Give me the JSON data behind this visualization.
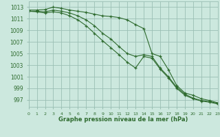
{
  "x": [
    0,
    1,
    2,
    3,
    4,
    5,
    6,
    7,
    8,
    9,
    10,
    11,
    12,
    13,
    14,
    15,
    16,
    17,
    18,
    19,
    20,
    21,
    22,
    23
  ],
  "line1": [
    1012.5,
    1012.5,
    1012.6,
    1013.0,
    1012.8,
    1012.5,
    1012.3,
    1012.1,
    1011.8,
    1011.5,
    1011.4,
    1011.2,
    1010.8,
    1010.0,
    1009.3,
    1005.0,
    1004.5,
    1002.2,
    999.5,
    998.2,
    997.8,
    997.2,
    996.9,
    996.5
  ],
  "line2": [
    1012.3,
    1012.3,
    1012.2,
    1012.5,
    1012.3,
    1012.0,
    1011.5,
    1010.8,
    1009.8,
    1008.5,
    1007.5,
    1006.2,
    1005.0,
    1004.5,
    1004.8,
    1004.5,
    1002.5,
    1001.0,
    999.2,
    998.0,
    997.3,
    996.9,
    996.7,
    996.4
  ],
  "line3": [
    1012.3,
    1012.2,
    1012.0,
    1012.2,
    1012.0,
    1011.5,
    1010.8,
    1009.8,
    1008.5,
    1007.2,
    1006.0,
    1004.8,
    1003.5,
    1002.5,
    1004.5,
    1004.2,
    1002.3,
    1000.8,
    999.0,
    997.8,
    997.2,
    996.8,
    996.6,
    996.3
  ],
  "line_color": "#2d6a2d",
  "bg_color": "#cce8de",
  "grid_color": "#9abfb3",
  "xlabel": "Graphe pression niveau de la mer (hPa)",
  "ylabel_ticks": [
    997,
    999,
    1001,
    1003,
    1005,
    1007,
    1009,
    1011,
    1013
  ],
  "ylim": [
    995.8,
    1014.0
  ],
  "xlim": [
    0,
    23
  ]
}
